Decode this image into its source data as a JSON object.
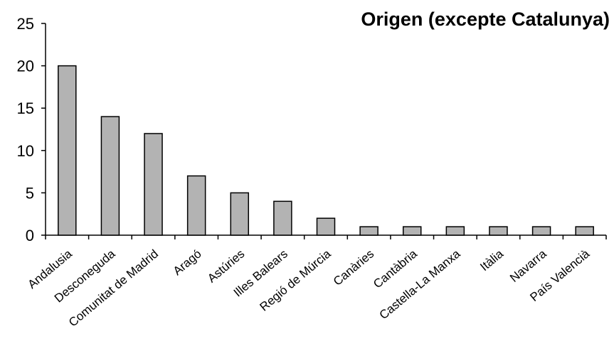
{
  "chart_data": {
    "type": "bar",
    "title": "Origen (excepte Catalunya)",
    "xlabel": "",
    "ylabel": "",
    "categories": [
      "Andalusia",
      "Desconeguda",
      "Comunitat de Madrid",
      "Aragó",
      "Astúries",
      "Illes Balears",
      "Regió de Múrcia",
      "Canàries",
      "Cantàbria",
      "Castella-La Manxa",
      "Itàlia",
      "Navarra",
      "País Valencià"
    ],
    "values": [
      20,
      14,
      12,
      7,
      5,
      4,
      2,
      1,
      1,
      1,
      1,
      1,
      1
    ],
    "ylim": [
      0,
      25
    ],
    "yticks": [
      0,
      5,
      10,
      15,
      20,
      25
    ],
    "grid": false,
    "legend": "none",
    "bar_color": "#b3b3b3",
    "bar_edge_color": "#000000"
  }
}
